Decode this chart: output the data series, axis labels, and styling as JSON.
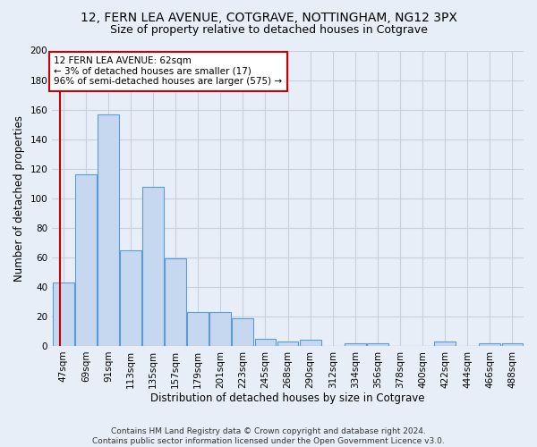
{
  "title": "12, FERN LEA AVENUE, COTGRAVE, NOTTINGHAM, NG12 3PX",
  "subtitle": "Size of property relative to detached houses in Cotgrave",
  "xlabel": "Distribution of detached houses by size in Cotgrave",
  "ylabel": "Number of detached properties",
  "bar_labels": [
    "47sqm",
    "69sqm",
    "91sqm",
    "113sqm",
    "135sqm",
    "157sqm",
    "179sqm",
    "201sqm",
    "223sqm",
    "245sqm",
    "268sqm",
    "290sqm",
    "312sqm",
    "334sqm",
    "356sqm",
    "378sqm",
    "400sqm",
    "422sqm",
    "444sqm",
    "466sqm",
    "488sqm"
  ],
  "bar_values": [
    43,
    116,
    157,
    65,
    108,
    59,
    23,
    23,
    19,
    5,
    3,
    4,
    0,
    2,
    2,
    0,
    0,
    3,
    0,
    2,
    2
  ],
  "bar_color": "#c5d8ef",
  "bar_edge_color": "#5a9bd5",
  "annotation_text_line1": "12 FERN LEA AVENUE: 62sqm",
  "annotation_text_line2": "← 3% of detached houses are smaller (17)",
  "annotation_text_line3": "96% of semi-detached houses are larger (575) →",
  "annotation_box_color": "#ffffff",
  "annotation_box_edge_color": "#cc0000",
  "vline_color": "#cc0000",
  "vline_x": -0.15,
  "ylim": [
    0,
    200
  ],
  "yticks": [
    0,
    20,
    40,
    60,
    80,
    100,
    120,
    140,
    160,
    180,
    200
  ],
  "footer_line1": "Contains HM Land Registry data © Crown copyright and database right 2024.",
  "footer_line2": "Contains public sector information licensed under the Open Government Licence v3.0.",
  "bg_color": "#e8eef8",
  "plot_bg_color": "#e8eef8",
  "title_fontsize": 10,
  "subtitle_fontsize": 9,
  "axis_label_fontsize": 8.5,
  "tick_fontsize": 7.5,
  "footer_fontsize": 6.5,
  "grid_color": "#c8d0dc"
}
